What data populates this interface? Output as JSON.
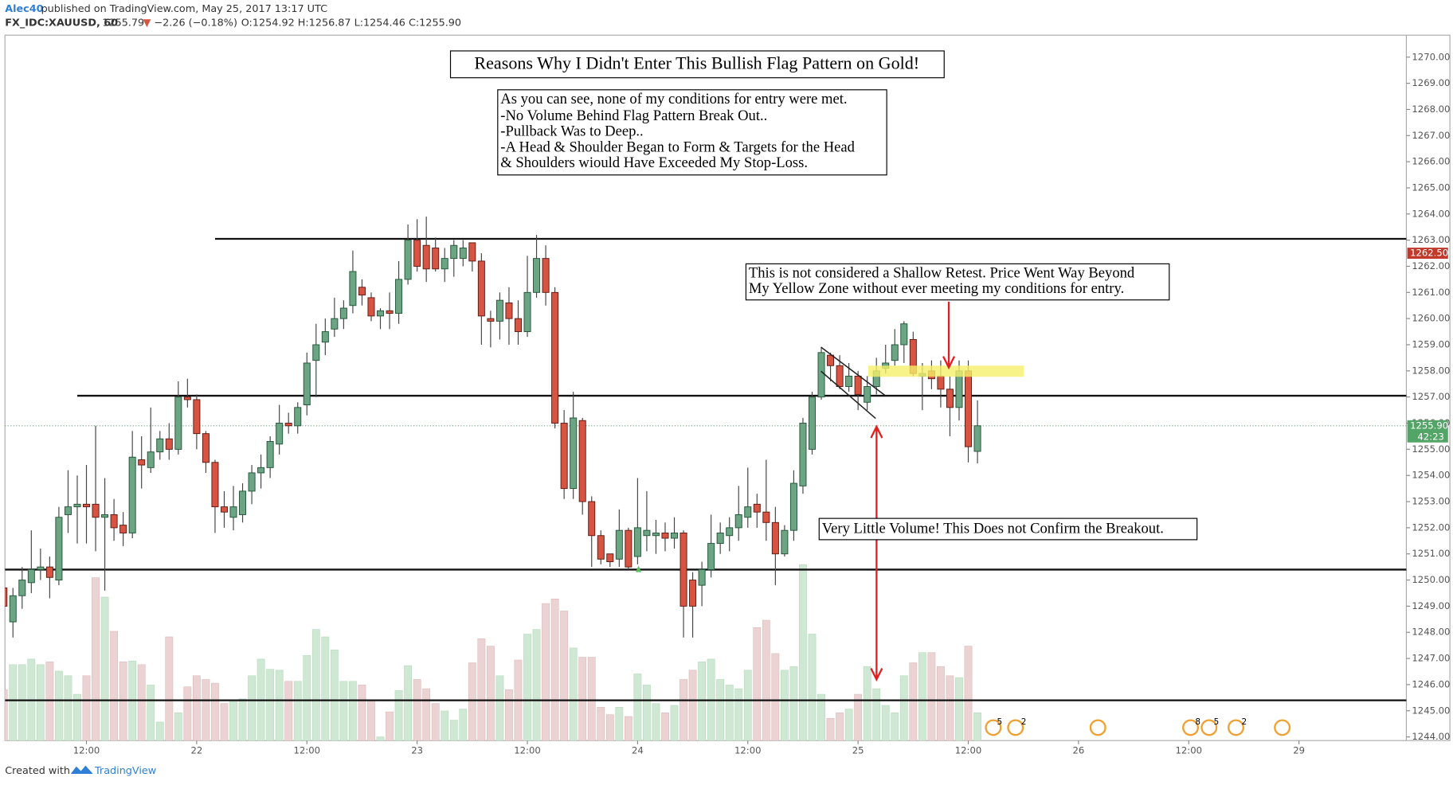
{
  "header": {
    "author": "Alec40",
    "published": "published on TradingView.com, May 25, 2017 13:17 UTC",
    "symbol": "FX_IDC:XAUUSD, 60",
    "price": "1255.79",
    "arrow": "▼",
    "change": "−2.26 (−0.18%)",
    "ohlc": "O:1254.92 H:1256.87 L:1254.46 C:1255.90"
  },
  "footer": {
    "created": "Created with",
    "brand": "TradingView"
  },
  "chart_data": {
    "type": "candlestick",
    "annotations": {
      "title": "Reasons Why I Didn't Enter This Bullish Flag Pattern on Gold!",
      "reasons": [
        "As you can see, none of my conditions for entry were met.",
        "-No Volume Behind Flag Pattern Break Out..",
        "-Pullback Was to Deep..",
        "-A Head & Shoulder Began to Form & Targets for the Head",
        "& Shoulders wiould Have Exceeded My Stop-Loss."
      ],
      "retest": [
        "This is not considered a Shallow Retest. Price Went Way Beyond",
        "My Yellow Zone without ever meeting my conditions for entry."
      ],
      "volume_note": "Very Little Volume! This Does not Confirm the Breakout."
    },
    "open": [
      1249.7,
      1248.4,
      1249.4,
      1249.9,
      1250.4,
      1250.5,
      1250.0,
      1252.5,
      1252.8,
      1252.9,
      1252.9,
      1252.4,
      1252.5,
      1252.1,
      1251.8,
      1254.6,
      1254.3,
      1254.9,
      1255.4,
      1255.0,
      1257.0,
      1256.9,
      1255.6,
      1254.5,
      1252.8,
      1252.4,
      1252.5,
      1253.4,
      1254.1,
      1254.3,
      1255.2,
      1256.0,
      1255.9,
      1256.7,
      1258.4,
      1259.1,
      1259.6,
      1260.0,
      1260.5,
      1261.2,
      1260.8,
      1260.1,
      1260.3,
      1260.2,
      1261.5,
      1263.0,
      1262.8,
      1262.7,
      1261.9,
      1262.3,
      1262.3,
      1262.9,
      1262.2,
      1260.0,
      1259.9,
      1260.6,
      1260.0,
      1259.5,
      1261.0,
      1262.3,
      1261.0,
      1256.0,
      1253.5,
      1256.1,
      1253.0,
      1251.7,
      1251.0,
      1250.8,
      1251.9,
      1250.9,
      1251.7,
      1251.7,
      1251.8,
      1251.6,
      1251.8,
      1250.0,
      1249.8,
      1250.4,
      1251.4,
      1251.7,
      1252.0,
      1252.4,
      1252.9,
      1252.6,
      1252.2,
      1251.0,
      1251.9,
      1253.6,
      1255.0,
      1257.0,
      1258.6,
      1258.2,
      1257.4,
      1257.8,
      1256.8,
      1257.4,
      1258.1,
      1258.4,
      1259.0,
      1259.2,
      1257.8,
      1258.0,
      1257.8,
      1257.3,
      1256.6,
      1258.0,
      1254.92
    ],
    "high": [
      1250.4,
      1249.7,
      1250.5,
      1251.9,
      1251.2,
      1250.9,
      1252.8,
      1254.2,
      1254.0,
      1254.4,
      1255.9,
      1253.9,
      1253.1,
      1252.6,
      1255.7,
      1255.5,
      1256.6,
      1255.7,
      1256.0,
      1257.6,
      1257.7,
      1257.1,
      1255.7,
      1254.6,
      1253.4,
      1253.6,
      1253.7,
      1254.4,
      1254.8,
      1255.5,
      1256.7,
      1256.4,
      1256.8,
      1258.7,
      1259.8,
      1260.0,
      1260.8,
      1260.7,
      1262.6,
      1261.5,
      1261.0,
      1260.4,
      1261.0,
      1262.2,
      1263.6,
      1263.8,
      1263.9,
      1263.1,
      1262.7,
      1263.0,
      1263.0,
      1262.9,
      1262.5,
      1260.3,
      1261.0,
      1261.2,
      1260.7,
      1262.4,
      1263.2,
      1262.8,
      1261.2,
      1256.5,
      1257.2,
      1256.2,
      1253.2,
      1251.9,
      1251.0,
      1252.7,
      1252.0,
      1253.9,
      1253.4,
      1252.3,
      1252.2,
      1252.4,
      1251.9,
      1250.3,
      1250.7,
      1252.5,
      1252.2,
      1252.4,
      1253.6,
      1254.3,
      1253.3,
      1254.6,
      1252.8,
      1252.1,
      1254.2,
      1256.2,
      1257.2,
      1258.9,
      1258.7,
      1258.6,
      1258.3,
      1258.0,
      1257.8,
      1258.5,
      1259.0,
      1259.6,
      1259.9,
      1259.5,
      1258.3,
      1258.4,
      1258.4,
      1257.8,
      1258.4,
      1258.4,
      1256.87
    ],
    "low": [
      1248.6,
      1247.8,
      1248.9,
      1249.5,
      1250.0,
      1249.3,
      1249.8,
      1251.8,
      1251.4,
      1251.4,
      1251.1,
      1249.6,
      1251.5,
      1251.3,
      1251.6,
      1253.5,
      1254.1,
      1254.6,
      1254.6,
      1254.8,
      1256.6,
      1255.0,
      1254.1,
      1251.8,
      1252.0,
      1251.9,
      1252.2,
      1252.9,
      1253.5,
      1253.9,
      1254.8,
      1255.6,
      1255.6,
      1256.3,
      1257.0,
      1258.6,
      1259.3,
      1259.6,
      1260.2,
      1260.5,
      1259.9,
      1259.6,
      1259.6,
      1259.8,
      1261.3,
      1261.8,
      1261.4,
      1261.8,
      1261.4,
      1261.6,
      1262.0,
      1261.8,
      1259.0,
      1258.9,
      1259.2,
      1259.0,
      1259.0,
      1259.3,
      1260.8,
      1260.5,
      1255.8,
      1253.1,
      1253.1,
      1252.5,
      1250.5,
      1250.6,
      1250.5,
      1250.5,
      1250.4,
      1250.6,
      1251.1,
      1251.0,
      1251.1,
      1251.2,
      1247.8,
      1247.8,
      1249.0,
      1250.1,
      1251.0,
      1251.1,
      1251.5,
      1252.0,
      1252.0,
      1251.5,
      1249.8,
      1250.9,
      1251.5,
      1253.3,
      1254.8,
      1256.9,
      1257.6,
      1257.3,
      1257.2,
      1256.5,
      1256.5,
      1257.1,
      1257.9,
      1258.2,
      1258.3,
      1257.8,
      1256.5,
      1257.3,
      1256.6,
      1255.5,
      1256.1,
      1254.5,
      1254.46
    ],
    "close": [
      1249.0,
      1249.4,
      1250.0,
      1250.4,
      1250.5,
      1250.1,
      1252.4,
      1252.8,
      1252.9,
      1252.8,
      1252.4,
      1252.5,
      1252.0,
      1251.8,
      1254.7,
      1254.4,
      1254.9,
      1255.4,
      1255.0,
      1257.0,
      1256.9,
      1255.6,
      1254.5,
      1252.8,
      1252.6,
      1252.8,
      1253.4,
      1254.1,
      1254.3,
      1255.3,
      1256.0,
      1255.9,
      1256.6,
      1258.3,
      1259.0,
      1259.5,
      1260.0,
      1260.4,
      1261.8,
      1260.9,
      1260.1,
      1260.3,
      1260.2,
      1261.5,
      1263.0,
      1262.0,
      1261.9,
      1261.9,
      1262.3,
      1262.8,
      1262.7,
      1262.2,
      1260.1,
      1259.9,
      1260.7,
      1260.0,
      1259.5,
      1261.0,
      1262.3,
      1261.0,
      1256.0,
      1253.5,
      1256.2,
      1253.0,
      1251.7,
      1250.8,
      1250.7,
      1251.9,
      1250.5,
      1252.0,
      1251.9,
      1251.8,
      1251.6,
      1251.8,
      1249.0,
      1249.0,
      1250.4,
      1251.4,
      1251.8,
      1252.0,
      1252.5,
      1252.8,
      1252.6,
      1252.2,
      1251.0,
      1251.9,
      1253.7,
      1256.0,
      1257.0,
      1258.7,
      1258.2,
      1257.4,
      1257.8,
      1257.1,
      1257.4,
      1258.0,
      1258.3,
      1259.0,
      1259.8,
      1257.9,
      1257.9,
      1257.7,
      1257.3,
      1256.6,
      1258.0,
      1255.1,
      1255.9
    ],
    "volume": [
      55,
      82,
      82,
      88,
      82,
      85,
      75,
      70,
      50,
      70,
      176,
      155,
      118,
      85,
      86,
      82,
      60,
      20,
      112,
      30,
      58,
      70,
      66,
      62,
      40,
      42,
      45,
      70,
      88,
      77,
      76,
      64,
      64,
      92,
      120,
      112,
      98,
      64,
      64,
      60,
      44,
      4,
      31,
      54,
      81,
      66,
      56,
      40,
      32,
      22,
      34,
      84,
      110,
      102,
      70,
      55,
      87,
      115,
      120,
      148,
      153,
      140,
      100,
      90,
      90,
      36,
      28,
      36,
      26,
      72,
      60,
      40,
      30,
      38,
      66,
      76,
      85,
      88,
      66,
      60,
      56,
      76,
      122,
      130,
      94,
      76,
      80,
      190,
      115,
      50,
      24,
      30,
      34,
      50,
      80,
      56,
      38,
      30,
      70,
      84,
      95,
      95,
      80,
      70,
      68,
      102,
      30
    ],
    "up_color": "#6ba583",
    "down_color": "#d75442",
    "ylim": [
      1243.86,
      1270.84
    ],
    "yticks": [
      {
        "value": 1244,
        "label": "1244.00"
      },
      {
        "value": 1245,
        "label": "1245.00"
      },
      {
        "value": 1246,
        "label": "1246.00"
      },
      {
        "value": 1247,
        "label": "1247.00"
      },
      {
        "value": 1248,
        "label": "1248.00"
      },
      {
        "value": 1249,
        "label": "1249.00"
      },
      {
        "value": 1250,
        "label": "1250.00"
      },
      {
        "value": 1251,
        "label": "1251.00"
      },
      {
        "value": 1252,
        "label": "1252.00"
      },
      {
        "value": 1253,
        "label": "1253.00"
      },
      {
        "value": 1254,
        "label": "1254.00"
      },
      {
        "value": 1255,
        "label": "1255.00"
      },
      {
        "value": 1256,
        "label": "1256.00"
      },
      {
        "value": 1257,
        "label": "1257.00"
      },
      {
        "value": 1258,
        "label": "1258.00"
      },
      {
        "value": 1259,
        "label": "1259.00"
      },
      {
        "value": 1260,
        "label": "1260.00"
      },
      {
        "value": 1261,
        "label": "1261.00"
      },
      {
        "value": 1262,
        "label": "1262.00"
      },
      {
        "value": 1263,
        "label": "1263.00"
      },
      {
        "value": 1264,
        "label": "1264.00"
      },
      {
        "value": 1265,
        "label": "1265.00"
      },
      {
        "value": 1266,
        "label": "1266.00"
      },
      {
        "value": 1267,
        "label": "1267.00"
      },
      {
        "value": 1268,
        "label": "1268.00"
      },
      {
        "value": 1269,
        "label": "1269.00"
      },
      {
        "value": 1270,
        "label": "1270.00"
      }
    ],
    "xlim": [
      0.13,
      152.69
    ],
    "xticks": [
      {
        "value": 9,
        "label": "12:00"
      },
      {
        "value": 21,
        "label": "22"
      },
      {
        "value": 33,
        "label": "12:00"
      },
      {
        "value": 45,
        "label": "23"
      },
      {
        "value": 57,
        "label": "12:00"
      },
      {
        "value": 69,
        "label": "24"
      },
      {
        "value": 81,
        "label": "12:00"
      },
      {
        "value": 93,
        "label": "25"
      },
      {
        "value": 105,
        "label": "12:00"
      },
      {
        "value": 117,
        "label": "26"
      },
      {
        "value": 129,
        "label": "12:00"
      },
      {
        "value": 141,
        "label": "29"
      }
    ],
    "hlines": [
      {
        "value": 1263.05,
        "from": 23
      },
      {
        "value": 1257.05,
        "from": 8
      },
      {
        "value": 1250.4,
        "from": 0.13
      },
      {
        "value": 1245.4,
        "from": 0.13
      }
    ],
    "price_label": {
      "value": 1262.5,
      "label": "1262.50"
    },
    "last_price": {
      "value": 1255.9,
      "label": "1255.90"
    },
    "countdown": "42:23",
    "events": [
      "5",
      "2",
      "8",
      "5",
      "2"
    ]
  }
}
